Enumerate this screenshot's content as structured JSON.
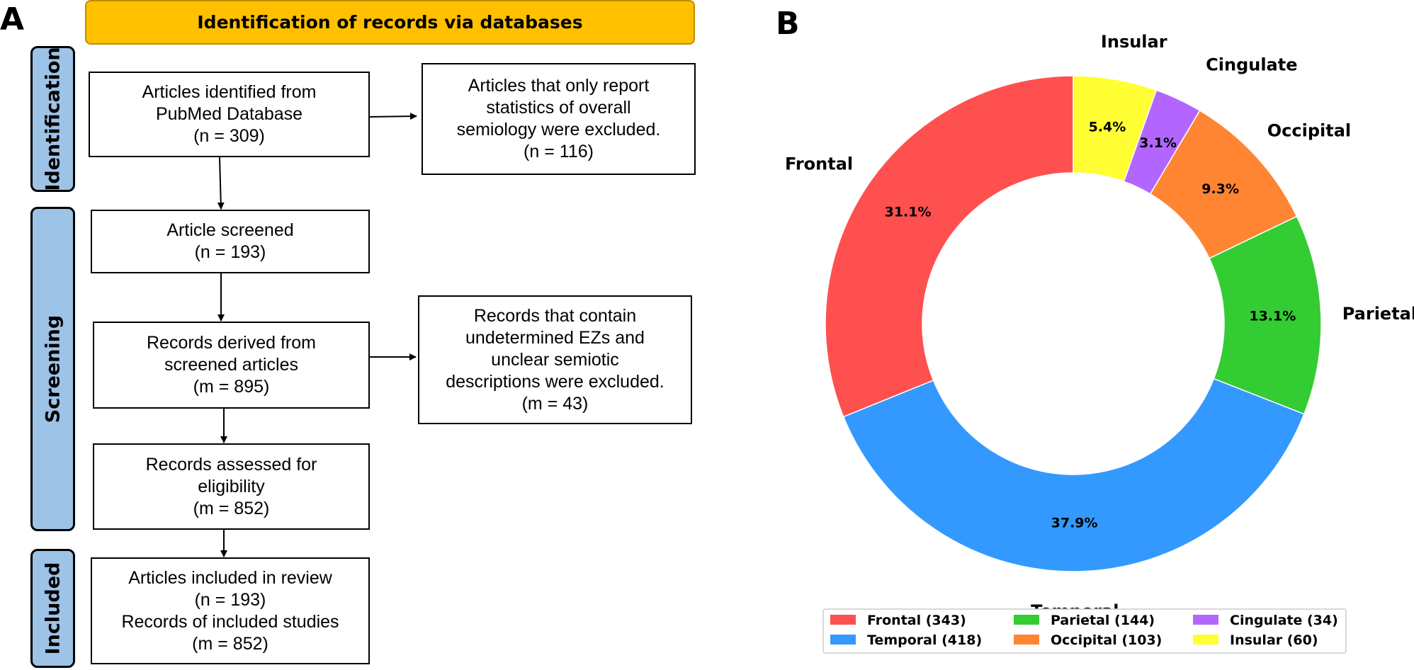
{
  "panel_a": {
    "letter": "A",
    "header": "Identification of records via databases",
    "stages": {
      "identification": "Identification",
      "screening": "Screening",
      "included": "Included"
    },
    "boxes": {
      "identified": [
        "Articles identified from",
        "PubMed Database",
        "(n = 309)"
      ],
      "excluded_overall": [
        "Articles that only report",
        "statistics of overall",
        "semiology were excluded.",
        "(n = 116)"
      ],
      "screened": [
        "Article screened",
        "(n = 193)"
      ],
      "derived": [
        "Records derived from",
        "screened articles",
        "(m = 895)"
      ],
      "excluded_undetermined": [
        "Records that contain",
        "undetermined EZs and",
        "unclear semiotic",
        "descriptions were excluded.",
        "(m = 43)"
      ],
      "assessed": [
        "Records assessed for",
        "eligibility",
        "(m = 852)"
      ],
      "included": [
        "Articles included in review",
        "(n = 193)",
        "Records of included studies",
        "(m = 852)"
      ]
    }
  },
  "panel_b": {
    "letter": "B"
  },
  "chart_data": {
    "type": "pie",
    "donut": true,
    "start": "top, clockwise order from 12 o'clock: Insular, Cingulate, Occipital, Parietal, Temporal, Frontal",
    "slices": [
      {
        "label": "Frontal",
        "value": 343,
        "percent": "31.1%",
        "color": "#FF5050",
        "legend": "Frontal (343)"
      },
      {
        "label": "Temporal",
        "value": 418,
        "percent": "37.9%",
        "color": "#3399FF",
        "legend": "Temporal (418)"
      },
      {
        "label": "Parietal",
        "value": 144,
        "percent": "13.1%",
        "color": "#33CC33",
        "legend": "Parietal (144)"
      },
      {
        "label": "Occipital",
        "value": 103,
        "percent": "9.3%",
        "color": "#FF8533",
        "legend": "Occipital (103)"
      },
      {
        "label": "Cingulate",
        "value": 34,
        "percent": "3.1%",
        "color": "#B266FF",
        "legend": "Cingulate (34)"
      },
      {
        "label": "Insular",
        "value": 60,
        "percent": "5.4%",
        "color": "#FFFF33",
        "legend": "Insular (60)"
      }
    ],
    "legend_placement": "bottom"
  }
}
